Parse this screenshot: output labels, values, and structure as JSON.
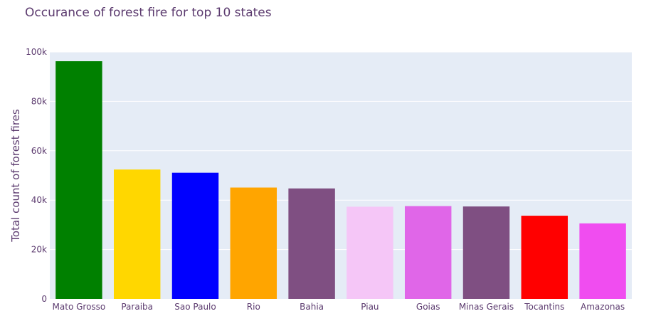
{
  "chart_data": {
    "type": "bar",
    "title": "Occurance of forest fire for top 10 states",
    "xlabel": "",
    "ylabel": "Total count of forest fires",
    "ylim": [
      0,
      100000
    ],
    "yticks": [
      0,
      20000,
      40000,
      60000,
      80000,
      100000
    ],
    "ytick_labels": [
      "0",
      "20k",
      "40k",
      "60k",
      "80k",
      "100k"
    ],
    "grid": true,
    "categories": [
      "Mato Grosso",
      "Paraiba",
      "Sao Paulo",
      "Rio",
      "Bahia",
      "Piau",
      "Goias",
      "Minas Gerais",
      "Tocantins",
      "Amazonas"
    ],
    "values": [
      96250,
      52400,
      51100,
      45100,
      44750,
      37350,
      37600,
      37450,
      33700,
      30600
    ],
    "colors": [
      "#008000",
      "#FFD700",
      "#0000FF",
      "#FFA500",
      "#7F4F82",
      "#F5C6F7",
      "#E066E8",
      "#7F4F82",
      "#FF0000",
      "#F04DF0"
    ]
  }
}
